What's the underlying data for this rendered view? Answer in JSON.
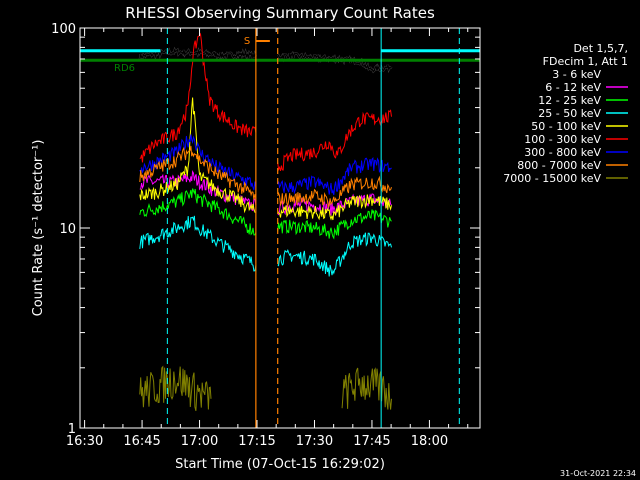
{
  "chart_data": {
    "type": "line",
    "title": "RHESSI Observing Summary Count Rates",
    "xlabel": "Start Time (07-Oct-15 16:29:02)",
    "ylabel": "Count Rate (s⁻¹ detector⁻¹)",
    "yscale": "log",
    "ylim": [
      1,
      100
    ],
    "xlim_minutes": [
      16.48,
      18.22
    ],
    "x_ticks": [
      "16:30",
      "16:45",
      "17:00",
      "17:15",
      "17:30",
      "17:45",
      "18:00"
    ],
    "y_ticks": [
      "1",
      "10",
      "100"
    ],
    "footer_date": "31-Oct-2021 22:34",
    "legend": {
      "header": [
        "Det 1,5,7,",
        "FDecim 1, Att 1"
      ],
      "entries": [
        {
          "name": "3 - 6 keV",
          "color": "#000000"
        },
        {
          "name": "6 - 12 keV",
          "color": "#ff00ff"
        },
        {
          "name": "12 - 25 keV",
          "color": "#00ff00"
        },
        {
          "name": "25 - 50 keV",
          "color": "#00ffff"
        },
        {
          "name": "50 - 100 keV",
          "color": "#ffff00"
        },
        {
          "name": "100 - 300 keV",
          "color": "#ff0000"
        },
        {
          "name": "300 - 800 keV",
          "color": "#0000ff"
        },
        {
          "name": "800 - 7000 keV",
          "color": "#ff8000"
        },
        {
          "name": "7000 - 15000 keV",
          "color": "#808000"
        }
      ]
    },
    "annotations": {
      "rd6_label": "RD6",
      "s_label": "S"
    },
    "series": [
      {
        "name": "3 - 6 keV",
        "color": "#000000",
        "segments": [
          [
            [
              16.74,
              72
            ],
            [
              16.8,
              74
            ],
            [
              16.9,
              76
            ],
            [
              17.0,
              75
            ],
            [
              17.1,
              73
            ],
            [
              17.2,
              74
            ],
            [
              17.245,
              72
            ]
          ],
          [
            [
              17.34,
              72
            ],
            [
              17.4,
              73
            ],
            [
              17.5,
              71
            ],
            [
              17.6,
              70
            ],
            [
              17.7,
              68
            ],
            [
              17.74,
              62
            ],
            [
              17.8,
              63
            ],
            [
              17.835,
              64
            ]
          ]
        ]
      },
      {
        "name": "6 - 12 keV",
        "color": "#ff00ff",
        "segments": [
          [
            [
              16.74,
              17
            ],
            [
              16.8,
              17
            ],
            [
              16.9,
              17
            ],
            [
              16.97,
              18
            ],
            [
              17.0,
              17
            ],
            [
              17.08,
              15
            ],
            [
              17.16,
              14
            ],
            [
              17.22,
              13
            ],
            [
              17.245,
              13
            ]
          ],
          [
            [
              17.34,
              12.5
            ],
            [
              17.4,
              13
            ],
            [
              17.5,
              13
            ],
            [
              17.58,
              12.5
            ],
            [
              17.66,
              13.5
            ],
            [
              17.75,
              14
            ],
            [
              17.835,
              13
            ]
          ]
        ]
      },
      {
        "name": "12 - 25 keV",
        "color": "#00ff00",
        "segments": [
          [
            [
              16.74,
              12
            ],
            [
              16.8,
              12.5
            ],
            [
              16.9,
              13.5
            ],
            [
              16.97,
              15
            ],
            [
              17.0,
              14
            ],
            [
              17.08,
              12.5
            ],
            [
              17.16,
              11
            ],
            [
              17.22,
              10
            ],
            [
              17.245,
              9.5
            ]
          ],
          [
            [
              17.34,
              10.2
            ],
            [
              17.4,
              10.2
            ],
            [
              17.5,
              10
            ],
            [
              17.58,
              9.5
            ],
            [
              17.66,
              11
            ],
            [
              17.75,
              11.5
            ],
            [
              17.835,
              10.8
            ]
          ]
        ]
      },
      {
        "name": "25 - 50 keV",
        "color": "#00ffff",
        "segments": [
          [
            [
              16.74,
              8.5
            ],
            [
              16.8,
              9
            ],
            [
              16.9,
              10
            ],
            [
              16.97,
              11
            ],
            [
              17.0,
              10
            ],
            [
              17.08,
              8.5
            ],
            [
              17.16,
              7.5
            ],
            [
              17.22,
              6.8
            ],
            [
              17.245,
              6.5
            ]
          ],
          [
            [
              17.34,
              7
            ],
            [
              17.4,
              7.3
            ],
            [
              17.5,
              7
            ],
            [
              17.58,
              6
            ],
            [
              17.66,
              8.5
            ],
            [
              17.75,
              9
            ],
            [
              17.835,
              8
            ]
          ]
        ]
      },
      {
        "name": "50 - 100 keV",
        "color": "#ffff00",
        "segments": [
          [
            [
              16.74,
              14.5
            ],
            [
              16.8,
              15
            ],
            [
              16.9,
              16.5
            ],
            [
              16.95,
              20
            ],
            [
              16.97,
              45
            ],
            [
              17.0,
              18
            ],
            [
              17.08,
              15.5
            ],
            [
              17.16,
              14
            ],
            [
              17.22,
              12.5
            ],
            [
              17.245,
              12
            ]
          ],
          [
            [
              17.34,
              12.2
            ],
            [
              17.4,
              12.2
            ],
            [
              17.5,
              12
            ],
            [
              17.58,
              11.5
            ],
            [
              17.66,
              13.5
            ],
            [
              17.75,
              14
            ],
            [
              17.835,
              13
            ]
          ]
        ]
      },
      {
        "name": "100 - 300 keV",
        "color": "#ff0000",
        "segments": [
          [
            [
              16.74,
              22
            ],
            [
              16.8,
              26
            ],
            [
              16.9,
              30
            ],
            [
              16.95,
              40
            ],
            [
              16.97,
              72
            ],
            [
              17.0,
              96
            ],
            [
              17.04,
              45
            ],
            [
              17.08,
              38
            ],
            [
              17.16,
              32
            ],
            [
              17.22,
              30
            ],
            [
              17.245,
              30
            ]
          ],
          [
            [
              17.34,
              20
            ],
            [
              17.4,
              23
            ],
            [
              17.5,
              24
            ],
            [
              17.56,
              27
            ],
            [
              17.6,
              23
            ],
            [
              17.65,
              30
            ],
            [
              17.7,
              35
            ],
            [
              17.75,
              35
            ],
            [
              17.835,
              36
            ]
          ]
        ]
      },
      {
        "name": "300 - 800 keV",
        "color": "#0000ff",
        "segments": [
          [
            [
              16.74,
              20
            ],
            [
              16.8,
              21
            ],
            [
              16.9,
              24
            ],
            [
              16.97,
              29
            ],
            [
              17.0,
              24
            ],
            [
              17.08,
              20
            ],
            [
              17.16,
              18
            ],
            [
              17.22,
              17
            ],
            [
              17.245,
              16
            ]
          ],
          [
            [
              17.34,
              16
            ],
            [
              17.4,
              16
            ],
            [
              17.5,
              17
            ],
            [
              17.58,
              15.5
            ],
            [
              17.66,
              20
            ],
            [
              17.75,
              21
            ],
            [
              17.835,
              20
            ]
          ]
        ]
      },
      {
        "name": "800 - 7000 keV",
        "color": "#ff8000",
        "segments": [
          [
            [
              16.74,
              18
            ],
            [
              16.8,
              19.5
            ],
            [
              16.9,
              22
            ],
            [
              16.97,
              25
            ],
            [
              17.0,
              22
            ],
            [
              17.08,
              18.5
            ],
            [
              17.16,
              16.5
            ],
            [
              17.22,
              15
            ],
            [
              17.245,
              14
            ]
          ],
          [
            [
              17.34,
              14
            ],
            [
              17.4,
              14
            ],
            [
              17.5,
              14.5
            ],
            [
              17.58,
              13.5
            ],
            [
              17.66,
              16.5
            ],
            [
              17.75,
              17
            ],
            [
              17.835,
              16
            ]
          ]
        ]
      },
      {
        "name": "7000 - 15000 keV",
        "color": "#808000",
        "segments": [
          [
            [
              16.74,
              1.5
            ],
            [
              16.8,
              1.6
            ],
            [
              16.9,
              1.8
            ],
            [
              17.0,
              1.5
            ],
            [
              17.05,
              1.4
            ]
          ],
          [
            [
              17.62,
              1.5
            ],
            [
              17.7,
              1.7
            ],
            [
              17.8,
              1.6
            ],
            [
              17.835,
              1.4
            ]
          ]
        ]
      }
    ],
    "overlays": {
      "cyan_horizontal": {
        "color": "#00ffff",
        "y": 77,
        "ranges": [
          [
            16.48,
            16.83
          ],
          [
            17.79,
            18.22
          ]
        ]
      },
      "green_rd6_line": {
        "color": "#008000",
        "y": 69,
        "range": [
          16.48,
          18.22
        ]
      },
      "cyan_vertical_solid": {
        "color": "#00ffff",
        "x": [
          16.48,
          17.79
        ]
      },
      "cyan_vertical_dashed": {
        "color": "#00ffff",
        "x": [
          16.86,
          18.13
        ]
      },
      "orange_vertical_solid": {
        "color": "#ff8000",
        "x": [
          17.245
        ]
      },
      "orange_vertical_dashed": {
        "color": "#ff8000",
        "x": [
          17.34
        ]
      }
    }
  }
}
